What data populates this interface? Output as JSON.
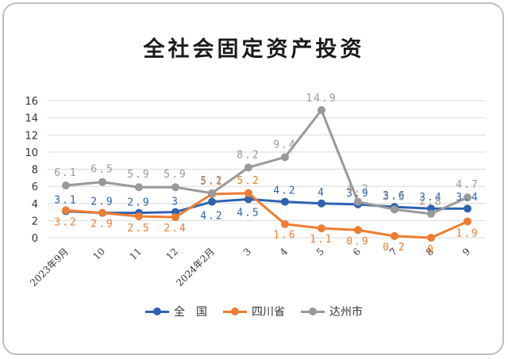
{
  "chart_data": {
    "type": "line",
    "title": "全社会固定资产投资",
    "categories": [
      "2023年9月",
      "10",
      "11",
      "12",
      "2024年2月",
      "3",
      "4",
      "5",
      "6",
      "7",
      "8",
      "9"
    ],
    "ylim": [
      0,
      16
    ],
    "yticks": [
      0,
      2,
      4,
      6,
      8,
      10,
      12,
      14,
      16
    ],
    "grid": true,
    "legend_position": "bottom",
    "series": [
      {
        "name": "全　国",
        "color": "#2e62b0",
        "values": [
          3.1,
          2.9,
          2.9,
          3.0,
          4.2,
          4.5,
          4.2,
          4.0,
          3.9,
          3.6,
          3.4,
          3.4
        ],
        "labels": [
          "3.1",
          "2.9",
          "2.9",
          "3",
          "4.2",
          "4.5",
          "4.2",
          "4",
          "3.9",
          "3.6",
          "3.4",
          "3.4"
        ]
      },
      {
        "name": "四川省",
        "color": "#ed7d31",
        "values": [
          3.2,
          2.9,
          2.5,
          2.4,
          5.1,
          5.2,
          1.6,
          1.1,
          0.9,
          0.2,
          0.0,
          1.9
        ],
        "labels": [
          "3.2",
          "2.9",
          "2.5",
          "2.4",
          "5.1",
          "5.2",
          "1.6",
          "1.1",
          "0.9",
          "0.2",
          "0",
          "1.9"
        ]
      },
      {
        "name": "达州市",
        "color": "#999999",
        "values": [
          6.1,
          6.5,
          5.9,
          5.9,
          5.2,
          8.2,
          9.4,
          14.9,
          4.2,
          3.3,
          2.8,
          4.7
        ],
        "labels": [
          "6.1",
          "6.5",
          "5.9",
          "5.9",
          "5.2",
          "8.2",
          "9.4",
          "14.9",
          "4.2",
          "3.3",
          "2.8",
          "4.7"
        ]
      }
    ]
  }
}
